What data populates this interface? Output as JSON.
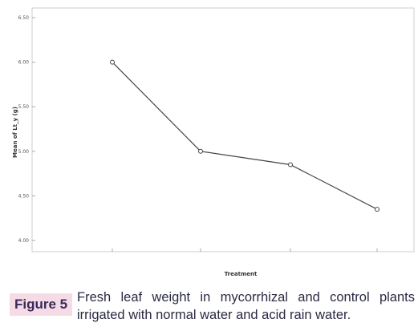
{
  "chart_data": {
    "type": "line",
    "title": "",
    "xlabel": "Treatment",
    "ylabel": "Mean of Lt_y (g)",
    "categories": [
      "",
      "",
      "",
      ""
    ],
    "series": [
      {
        "values": [
          6.0,
          5.0,
          4.85,
          4.35
        ]
      }
    ],
    "yticks": [
      6.5,
      6.0,
      5.5,
      5.0,
      4.5,
      4.0
    ],
    "ytick_labels": [
      "6.50",
      "6.00",
      "5.50",
      "5.00",
      "4.50",
      "4.00"
    ],
    "ylim": [
      4.0,
      6.5
    ],
    "grid": false,
    "line_color": "#444444",
    "frame_color": "#cccccc"
  },
  "caption": {
    "label": "Figure 5",
    "text": "Fresh leaf weight in mycorrhizal and control plants irrigated with normal water and acid rain water.",
    "label_bg": "#f5dbe6"
  }
}
